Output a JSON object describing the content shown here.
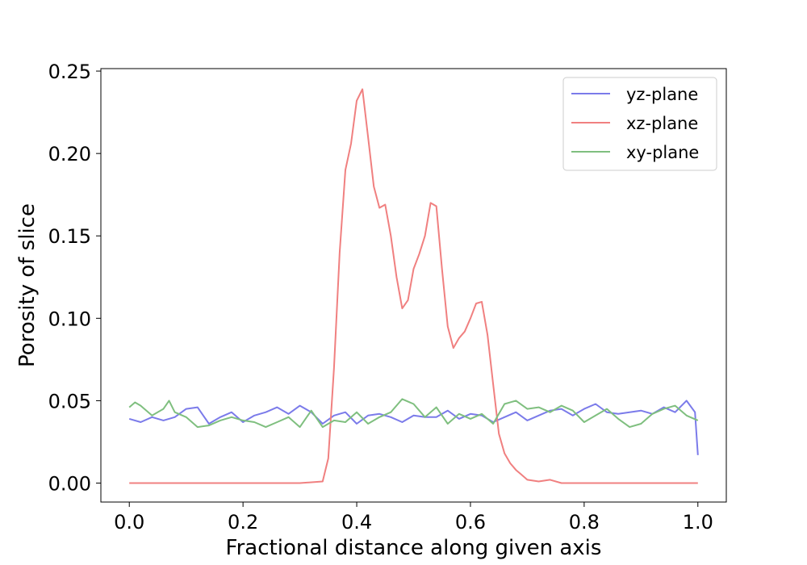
{
  "chart_data": {
    "type": "line",
    "xlabel": "Fractional distance along given axis",
    "ylabel": "Porosity of slice",
    "xlim": [
      -0.05,
      1.05
    ],
    "ylim": [
      -0.0115,
      0.2515
    ],
    "xticks": [
      0.0,
      0.2,
      0.4,
      0.6,
      0.8,
      1.0
    ],
    "xtick_labels": [
      "0.0",
      "0.2",
      "0.4",
      "0.6",
      "0.8",
      "1.0"
    ],
    "yticks": [
      0.0,
      0.05,
      0.1,
      0.15,
      0.2,
      0.25
    ],
    "ytick_labels": [
      "0.00",
      "0.05",
      "0.10",
      "0.15",
      "0.20",
      "0.25"
    ],
    "grid": false,
    "legend_position": "top-right",
    "series": [
      {
        "name": "yz-plane",
        "color": "#7b7bea",
        "x": [
          0.0,
          0.02,
          0.04,
          0.06,
          0.08,
          0.1,
          0.12,
          0.14,
          0.16,
          0.18,
          0.2,
          0.22,
          0.24,
          0.26,
          0.28,
          0.3,
          0.32,
          0.34,
          0.36,
          0.38,
          0.4,
          0.42,
          0.44,
          0.46,
          0.48,
          0.5,
          0.52,
          0.54,
          0.56,
          0.58,
          0.6,
          0.62,
          0.64,
          0.66,
          0.68,
          0.7,
          0.72,
          0.74,
          0.76,
          0.78,
          0.8,
          0.82,
          0.84,
          0.86,
          0.88,
          0.9,
          0.92,
          0.94,
          0.96,
          0.98,
          0.995,
          1.0
        ],
        "values": [
          0.039,
          0.037,
          0.04,
          0.038,
          0.04,
          0.045,
          0.046,
          0.036,
          0.04,
          0.043,
          0.037,
          0.041,
          0.043,
          0.046,
          0.042,
          0.047,
          0.043,
          0.036,
          0.041,
          0.043,
          0.036,
          0.041,
          0.042,
          0.04,
          0.037,
          0.041,
          0.04,
          0.04,
          0.044,
          0.039,
          0.042,
          0.041,
          0.037,
          0.04,
          0.043,
          0.038,
          0.041,
          0.044,
          0.045,
          0.041,
          0.045,
          0.048,
          0.043,
          0.042,
          0.043,
          0.044,
          0.042,
          0.046,
          0.043,
          0.05,
          0.043,
          0.017
        ]
      },
      {
        "name": "xz-plane",
        "color": "#f08080",
        "x": [
          0.0,
          0.1,
          0.2,
          0.3,
          0.34,
          0.35,
          0.36,
          0.37,
          0.38,
          0.39,
          0.4,
          0.41,
          0.42,
          0.43,
          0.44,
          0.45,
          0.46,
          0.47,
          0.48,
          0.49,
          0.5,
          0.51,
          0.52,
          0.53,
          0.54,
          0.55,
          0.56,
          0.57,
          0.58,
          0.59,
          0.6,
          0.61,
          0.62,
          0.63,
          0.64,
          0.65,
          0.66,
          0.67,
          0.68,
          0.69,
          0.7,
          0.72,
          0.74,
          0.76,
          0.8,
          0.9,
          1.0
        ],
        "values": [
          0.0,
          0.0,
          0.0,
          0.0,
          0.001,
          0.015,
          0.07,
          0.14,
          0.19,
          0.206,
          0.232,
          0.239,
          0.21,
          0.18,
          0.167,
          0.169,
          0.15,
          0.125,
          0.106,
          0.111,
          0.13,
          0.139,
          0.15,
          0.17,
          0.168,
          0.13,
          0.095,
          0.082,
          0.088,
          0.092,
          0.1,
          0.109,
          0.11,
          0.09,
          0.06,
          0.03,
          0.018,
          0.012,
          0.008,
          0.005,
          0.002,
          0.001,
          0.002,
          0.0,
          0.0,
          0.0,
          0.0
        ]
      },
      {
        "name": "xy-plane",
        "color": "#7fbf7f",
        "x": [
          0.0,
          0.01,
          0.02,
          0.04,
          0.06,
          0.07,
          0.08,
          0.1,
          0.12,
          0.14,
          0.16,
          0.18,
          0.2,
          0.22,
          0.24,
          0.26,
          0.28,
          0.3,
          0.32,
          0.34,
          0.36,
          0.38,
          0.4,
          0.42,
          0.44,
          0.46,
          0.48,
          0.5,
          0.52,
          0.54,
          0.56,
          0.58,
          0.6,
          0.62,
          0.64,
          0.66,
          0.68,
          0.7,
          0.72,
          0.74,
          0.76,
          0.78,
          0.8,
          0.82,
          0.84,
          0.86,
          0.88,
          0.9,
          0.92,
          0.94,
          0.96,
          0.98,
          1.0
        ],
        "values": [
          0.046,
          0.049,
          0.047,
          0.041,
          0.045,
          0.05,
          0.043,
          0.04,
          0.034,
          0.035,
          0.038,
          0.04,
          0.038,
          0.037,
          0.034,
          0.037,
          0.04,
          0.034,
          0.044,
          0.034,
          0.038,
          0.037,
          0.043,
          0.036,
          0.04,
          0.043,
          0.051,
          0.048,
          0.04,
          0.046,
          0.036,
          0.042,
          0.039,
          0.042,
          0.036,
          0.048,
          0.05,
          0.045,
          0.046,
          0.043,
          0.047,
          0.044,
          0.037,
          0.041,
          0.045,
          0.039,
          0.034,
          0.036,
          0.042,
          0.045,
          0.047,
          0.041,
          0.038
        ]
      }
    ]
  }
}
